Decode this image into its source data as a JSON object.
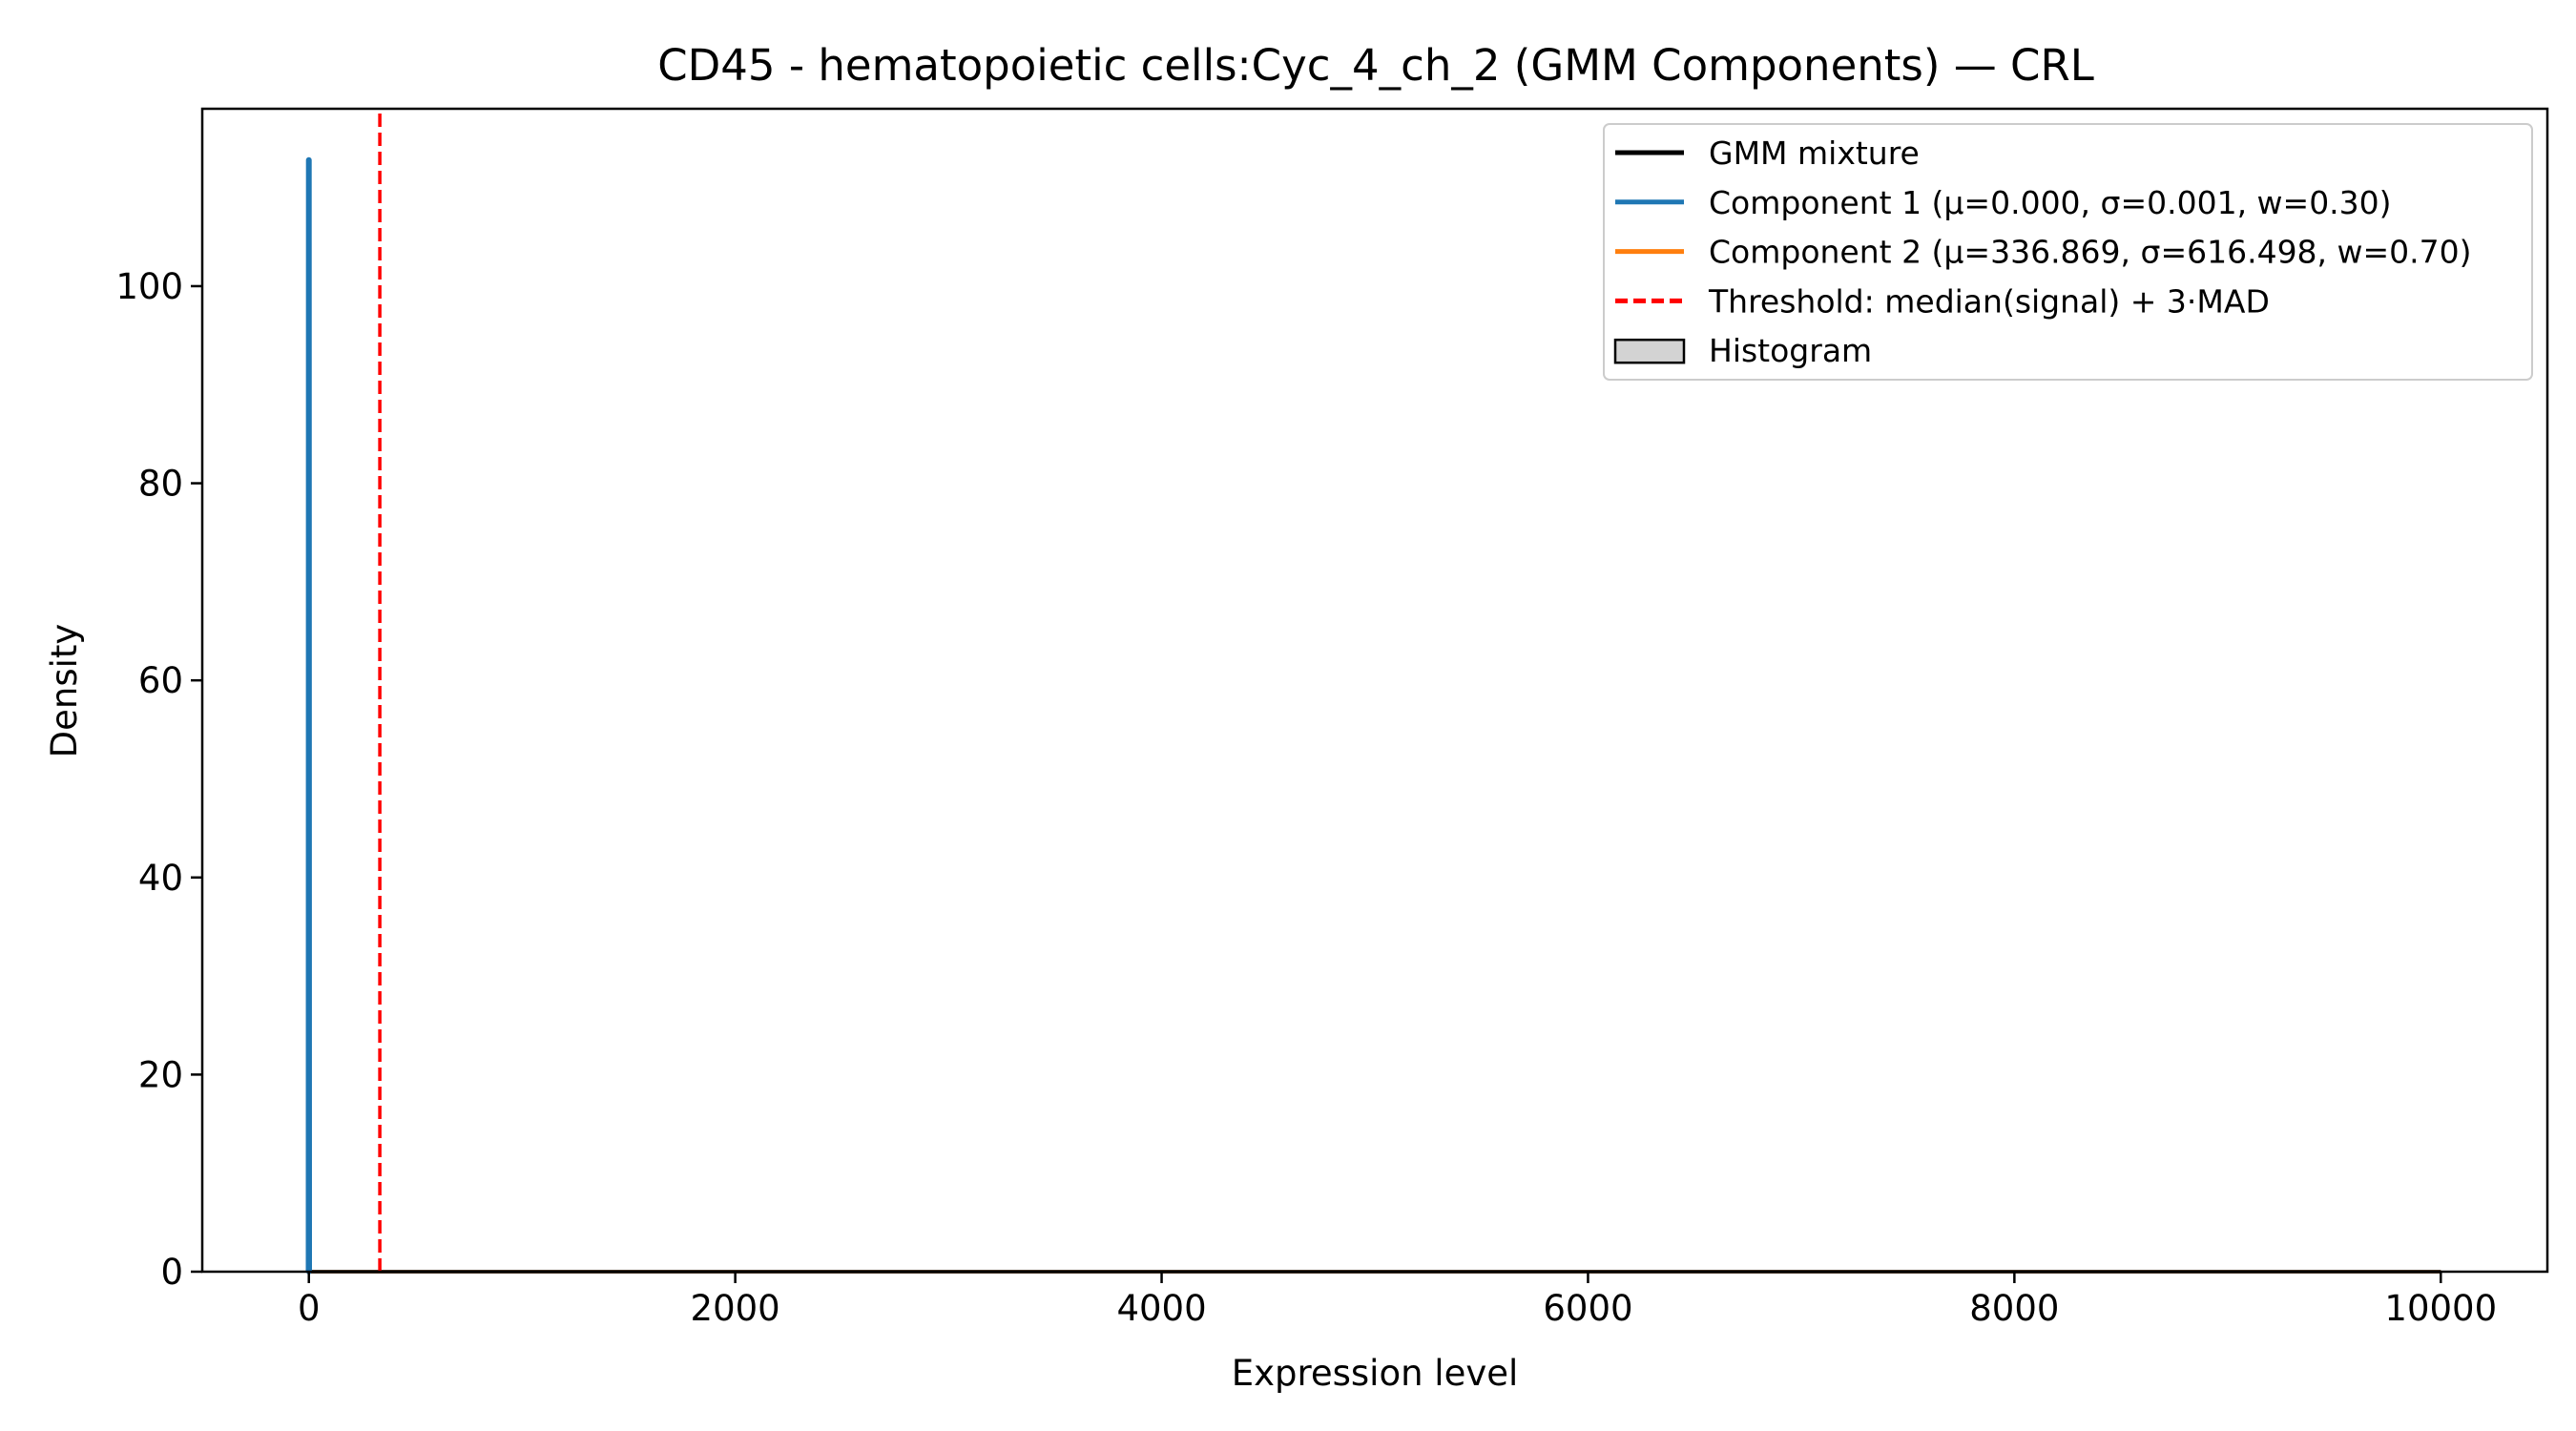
{
  "chart_data": {
    "type": "line",
    "title": "CD45 - hematopoietic cells:Cyc_4_ch_2 (GMM Components) — CRL",
    "xlabel": "Expression level",
    "ylabel": "Density",
    "xlim": [
      -500,
      10500
    ],
    "ylim": [
      0,
      118
    ],
    "xticks": [
      0,
      2000,
      4000,
      6000,
      8000,
      10000
    ],
    "xtick_labels": [
      "0",
      "2000",
      "4000",
      "6000",
      "8000",
      "10000"
    ],
    "yticks": [
      0,
      20,
      40,
      60,
      80,
      100
    ],
    "ytick_labels": [
      "0",
      "20",
      "40",
      "60",
      "80",
      "100"
    ],
    "grid": false,
    "legend_position": "top-right",
    "threshold": 333,
    "series": [
      {
        "name": "GMM mixture",
        "color": "#000000",
        "style": "solid",
        "x": [
          0,
          10000
        ],
        "y": [
          0.0002,
          0.0002
        ]
      },
      {
        "name": "Component 1 (μ=0.000, σ=0.001, w=0.30)",
        "color": "#1f77b4",
        "style": "solid",
        "x": [
          -5,
          -1,
          0,
          1,
          5
        ],
        "y": [
          0,
          0,
          112.8,
          0,
          0
        ]
      },
      {
        "name": "Component 2 (μ=336.869, σ=616.498, w=0.70)",
        "color": "#ff7f0e",
        "style": "solid",
        "x": [
          0,
          10000
        ],
        "y": [
          0.0002,
          0.0002
        ]
      },
      {
        "name": "Threshold: median(signal) + 3·MAD",
        "color": "#ff0000",
        "style": "dashed",
        "x": [
          333,
          333
        ],
        "y": [
          0,
          118
        ]
      }
    ],
    "histogram": {
      "name": "Histogram",
      "color": "#d3d3d3",
      "edge": "#000000",
      "bins": []
    }
  }
}
